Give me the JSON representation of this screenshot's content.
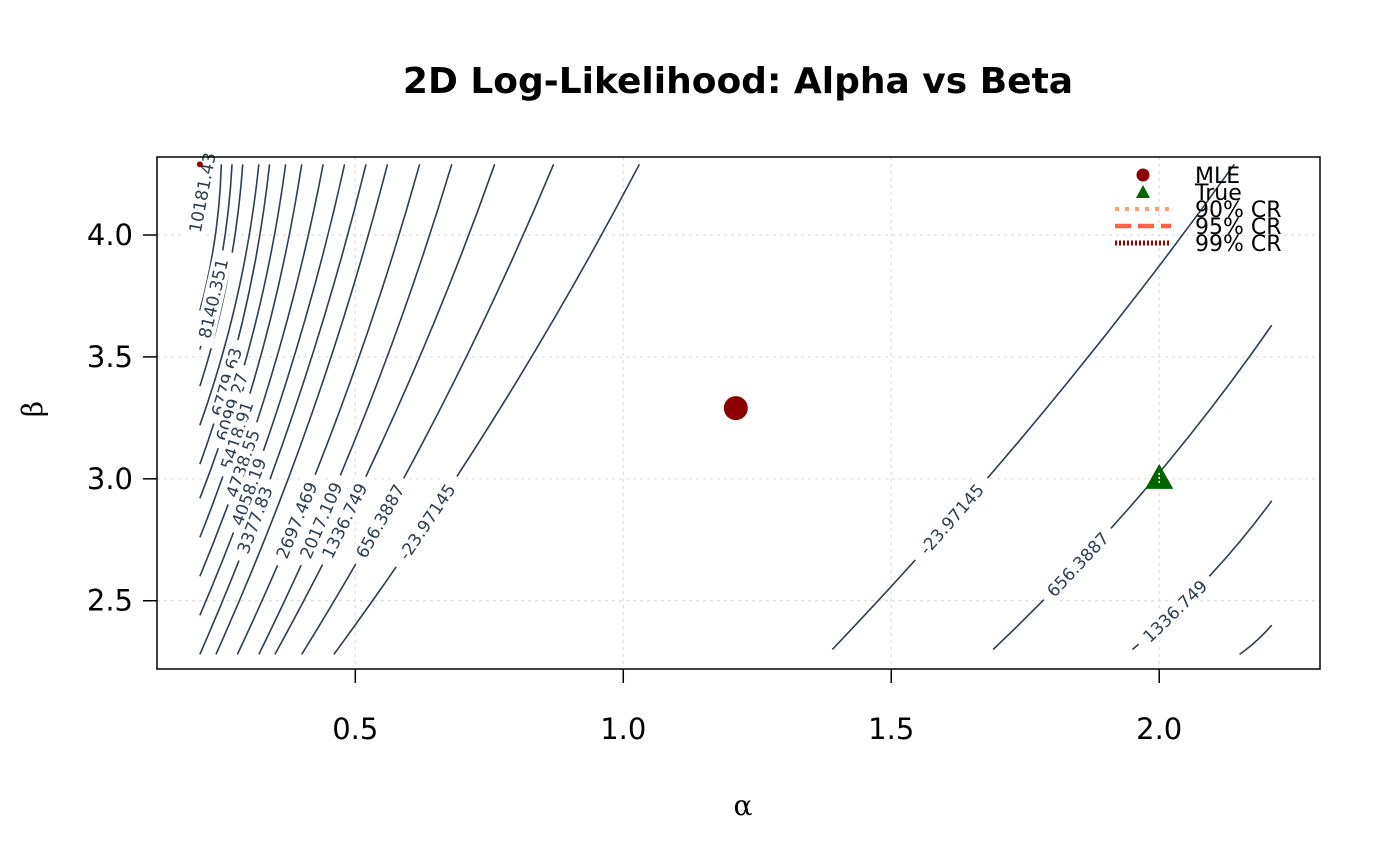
{
  "chart_data": {
    "type": "contour",
    "title": "2D Log-Likelihood: Alpha vs Beta",
    "xlabel": "α",
    "ylabel": "β",
    "xlim": [
      0.13,
      2.3
    ],
    "ylim": [
      2.22,
      4.32
    ],
    "x_ticks": [
      {
        "value": 0.5,
        "label": "0.5"
      },
      {
        "value": 1.0,
        "label": "1.0"
      },
      {
        "value": 1.5,
        "label": "1.5"
      },
      {
        "value": 2.0,
        "label": "2.0"
      }
    ],
    "y_ticks": [
      {
        "value": 2.5,
        "label": "2.5"
      },
      {
        "value": 3.0,
        "label": "3.0"
      },
      {
        "value": 3.5,
        "label": "3.5"
      },
      {
        "value": 4.0,
        "label": "4.0"
      }
    ],
    "grid": true,
    "contours": [
      {
        "level": "10181.43",
        "start": [
          0.21,
          4.13
        ],
        "end": [
          0.22,
          4.29
        ]
      },
      {
        "level": "",
        "start": [
          0.21,
          3.69
        ],
        "end": [
          0.25,
          4.29
        ]
      },
      {
        "level": "8140.351",
        "start": [
          0.21,
          3.53
        ],
        "end": [
          0.27,
          4.29
        ]
      },
      {
        "level": "",
        "start": [
          0.21,
          3.38
        ],
        "end": [
          0.29,
          4.29
        ]
      },
      {
        "level": "",
        "start": [
          0.21,
          3.22
        ],
        "end": [
          0.32,
          4.29
        ]
      },
      {
        "level": "6779.63",
        "start": [
          0.21,
          3.06
        ],
        "end": [
          0.34,
          4.29
        ]
      },
      {
        "level": "6099.27",
        "start": [
          0.21,
          2.92
        ],
        "end": [
          0.37,
          4.29
        ]
      },
      {
        "level": "5418.91",
        "start": [
          0.21,
          2.76
        ],
        "end": [
          0.4,
          4.29
        ]
      },
      {
        "level": "4738.55",
        "start": [
          0.21,
          2.6
        ],
        "end": [
          0.44,
          4.29
        ]
      },
      {
        "level": "4058.19",
        "start": [
          0.21,
          2.44
        ],
        "end": [
          0.48,
          4.29
        ]
      },
      {
        "level": "3377.83",
        "start": [
          0.21,
          2.28
        ],
        "end": [
          0.52,
          4.29
        ]
      },
      {
        "level": "",
        "start": [
          0.24,
          2.28
        ],
        "end": [
          0.56,
          4.29
        ]
      },
      {
        "level": "2697.469",
        "start": [
          0.28,
          2.28
        ],
        "end": [
          0.62,
          4.29
        ]
      },
      {
        "level": "2017.109",
        "start": [
          0.32,
          2.28
        ],
        "end": [
          0.68,
          4.29
        ]
      },
      {
        "level": "1336.749",
        "start": [
          0.35,
          2.28
        ],
        "end": [
          0.76,
          4.29
        ]
      },
      {
        "level": "656.3887",
        "start": [
          0.4,
          2.28
        ],
        "end": [
          0.87,
          4.29
        ]
      },
      {
        "level": "-23.97145",
        "start": [
          0.46,
          2.28
        ],
        "end": [
          1.03,
          4.29
        ]
      },
      {
        "level": "-23.97145",
        "start": [
          1.39,
          2.3
        ],
        "end": [
          2.14,
          4.29
        ]
      },
      {
        "level": "656.3887",
        "start": [
          1.69,
          2.3
        ],
        "end": [
          2.21,
          3.63
        ]
      },
      {
        "level": "1336.749",
        "start": [
          1.95,
          2.3
        ],
        "end": [
          2.21,
          2.91
        ]
      },
      {
        "level": "",
        "start": [
          2.15,
          2.28
        ],
        "end": [
          2.21,
          2.4
        ]
      }
    ],
    "points": [
      {
        "name": "MLE",
        "x": 1.21,
        "y": 3.29,
        "color": "#8b0000",
        "shape": "circle"
      },
      {
        "name": "True",
        "x": 2.0,
        "y": 3.0,
        "color": "#006400",
        "shape": "triangle"
      },
      {
        "name": "",
        "x": 0.21,
        "y": 4.29,
        "color": "#8b0000",
        "shape": "circle-small"
      }
    ],
    "legend": {
      "position": "top-right",
      "entries": [
        {
          "label": "MLE",
          "kind": "point",
          "shape": "circle",
          "color": "#8b0000"
        },
        {
          "label": "True",
          "kind": "point",
          "shape": "triangle",
          "color": "#006400"
        },
        {
          "label": "90% CR",
          "kind": "line",
          "style": "dotted",
          "color": "#ffa07a"
        },
        {
          "label": "95% CR",
          "kind": "line",
          "style": "dashed",
          "color": "#ff6347"
        },
        {
          "label": "99% CR",
          "kind": "line",
          "style": "dotted",
          "color": "#8b0000"
        }
      ]
    },
    "colors": {
      "contour": "#2c3e50",
      "grid": "#dddddd",
      "axis": "#000000"
    }
  }
}
